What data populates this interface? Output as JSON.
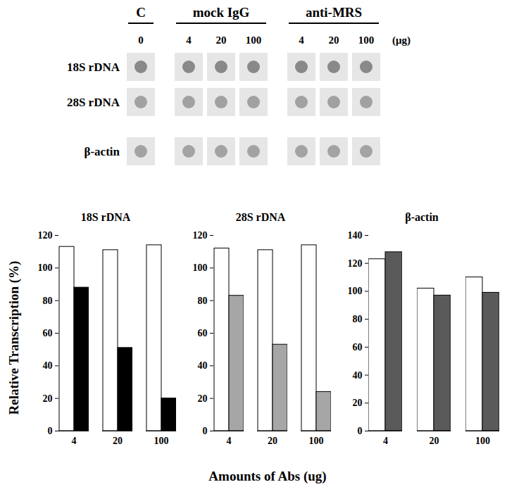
{
  "figure": {
    "ylabel": "Relative Transcription (%)",
    "xlabel": "Amounts of Abs (ug)"
  },
  "blot": {
    "groups": [
      {
        "label": "C",
        "doses": [
          0
        ]
      },
      {
        "label": "mock IgG",
        "doses": [
          4,
          20,
          100
        ]
      },
      {
        "label": "anti-MRS",
        "doses": [
          4,
          20,
          100
        ]
      }
    ],
    "unit": "(μg)",
    "rows": [
      "18S rDNA",
      "28S rDNA",
      "β-actin"
    ]
  },
  "chart_data": [
    {
      "type": "bar",
      "title": "18S rDNA",
      "categories": [
        "4",
        "20",
        "100"
      ],
      "series": [
        {
          "name": "mock IgG",
          "color": "#ffffff",
          "values": [
            113,
            111,
            114
          ]
        },
        {
          "name": "anti-MRS",
          "color": "#000000",
          "values": [
            88,
            51,
            20
          ]
        }
      ],
      "ylim": [
        0,
        120
      ],
      "yticks": [
        0,
        20,
        40,
        60,
        80,
        100,
        120
      ]
    },
    {
      "type": "bar",
      "title": "28S rDNA",
      "categories": [
        "4",
        "20",
        "100"
      ],
      "series": [
        {
          "name": "mock IgG",
          "color": "#ffffff",
          "values": [
            112,
            111,
            114
          ]
        },
        {
          "name": "anti-MRS",
          "color": "#a6a6a6",
          "values": [
            83,
            53,
            24
          ]
        }
      ],
      "ylim": [
        0,
        120
      ],
      "yticks": [
        0,
        20,
        40,
        60,
        80,
        100,
        120
      ]
    },
    {
      "type": "bar",
      "title": "β-actin",
      "categories": [
        "4",
        "20",
        "100"
      ],
      "series": [
        {
          "name": "mock IgG",
          "color": "#ffffff",
          "values": [
            123,
            102,
            110
          ]
        },
        {
          "name": "anti-MRS",
          "color": "#5a5a5a",
          "values": [
            128,
            97,
            99
          ]
        }
      ],
      "ylim": [
        0,
        140
      ],
      "yticks": [
        0,
        20,
        40,
        60,
        80,
        100,
        120,
        140
      ]
    }
  ]
}
